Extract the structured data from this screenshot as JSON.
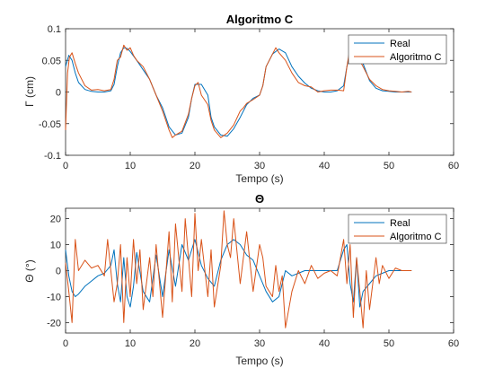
{
  "colors": {
    "real": "#0072BD",
    "algo": "#D95319",
    "axis": "#262626"
  },
  "chart_data": [
    {
      "type": "line",
      "title": "Algoritmo C",
      "xlabel": "Tempo (s)",
      "ylabel": "Γ (cm)",
      "xlim": [
        0,
        60
      ],
      "ylim": [
        -0.1,
        0.1
      ],
      "xticks": [
        0,
        10,
        20,
        30,
        40,
        50,
        60
      ],
      "yticks": [
        -0.1,
        -0.05,
        0,
        0.05,
        0.1
      ],
      "xtick_labels": [
        "0",
        "10",
        "20",
        "30",
        "40",
        "50",
        "60"
      ],
      "ytick_labels": [
        "-0.1",
        "-0.05",
        "0",
        "0.05",
        "0.1"
      ],
      "legend": [
        "Real",
        "Algoritmo C"
      ],
      "legend_position": "top-right",
      "series": [
        {
          "name": "Real",
          "x": [
            0,
            0.5,
            1,
            1.5,
            2,
            3,
            4,
            5,
            6,
            7,
            7.5,
            8,
            8.5,
            9,
            9.5,
            10,
            11,
            12,
            13,
            14,
            15,
            16,
            17,
            18,
            19,
            19.5,
            20,
            21,
            22,
            22.5,
            23,
            24,
            25,
            26,
            27,
            28,
            29,
            30,
            30.5,
            31,
            32,
            33,
            34,
            35,
            36,
            37,
            38,
            39,
            40,
            41,
            42,
            43,
            43.5,
            44,
            45,
            46,
            47,
            48,
            49,
            50,
            51,
            52,
            53,
            53.5
          ],
          "y": [
            0.04,
            0.058,
            0.05,
            0.03,
            0.015,
            0.004,
            0.001,
            0,
            0,
            0.002,
            0.012,
            0.04,
            0.062,
            0.07,
            0.069,
            0.064,
            0.05,
            0.035,
            0.02,
            -0.005,
            -0.025,
            -0.055,
            -0.068,
            -0.065,
            -0.04,
            -0.01,
            0.012,
            0.012,
            -0.005,
            -0.04,
            -0.055,
            -0.068,
            -0.07,
            -0.058,
            -0.04,
            -0.02,
            -0.01,
            -0.005,
            0.01,
            0.04,
            0.06,
            0.068,
            0.062,
            0.04,
            0.025,
            0.014,
            0.006,
            0.002,
            0,
            0,
            0.002,
            0.01,
            0.04,
            0.06,
            0.064,
            0.045,
            0.018,
            0.006,
            0.002,
            0.001,
            0,
            0,
            0,
            0
          ]
        },
        {
          "name": "Algoritmo C",
          "x": [
            0,
            0.3,
            0.6,
            1,
            1.5,
            2,
            3,
            4,
            5,
            6,
            7,
            7.5,
            8,
            8.5,
            9,
            9.5,
            10,
            10.5,
            11,
            12,
            13,
            14,
            15,
            15.5,
            16,
            16.5,
            17,
            18,
            19,
            19.5,
            20,
            20.5,
            21,
            22,
            22.5,
            23,
            24,
            25,
            26,
            27,
            27.5,
            28,
            29,
            30,
            30.5,
            31,
            32,
            32.5,
            33,
            34,
            35,
            36,
            37,
            38,
            39,
            40,
            41,
            42,
            43,
            43.5,
            44,
            45,
            46,
            47,
            48,
            49,
            50,
            51,
            52,
            53,
            53.5
          ],
          "y": [
            -0.06,
            0.03,
            0.055,
            0.062,
            0.045,
            0.03,
            0.01,
            0.003,
            0.004,
            0.002,
            0.004,
            0.02,
            0.05,
            0.055,
            0.074,
            0.066,
            0.07,
            0.058,
            0.05,
            0.04,
            0.02,
            -0.005,
            -0.03,
            -0.045,
            -0.06,
            -0.072,
            -0.068,
            -0.062,
            -0.035,
            -0.01,
            0.01,
            0.015,
            -0.005,
            -0.02,
            -0.045,
            -0.06,
            -0.072,
            -0.065,
            -0.052,
            -0.03,
            -0.025,
            -0.018,
            -0.012,
            -0.005,
            0.01,
            0.04,
            0.06,
            0.07,
            0.062,
            0.05,
            0.03,
            0.015,
            0.01,
            0.008,
            0,
            0.002,
            0.003,
            0.003,
            0.002,
            0.04,
            0.07,
            0.06,
            0.04,
            0.02,
            0.01,
            0.004,
            0.002,
            0.001,
            0,
            0.001,
            0
          ]
        }
      ]
    },
    {
      "type": "line",
      "title": "Θ",
      "xlabel": "Tempo (s)",
      "ylabel": "Θ (°)",
      "xlim": [
        0,
        60
      ],
      "ylim": [
        -24,
        24
      ],
      "xticks": [
        0,
        10,
        20,
        30,
        40,
        50,
        60
      ],
      "yticks": [
        -20,
        -10,
        0,
        10,
        20
      ],
      "xtick_labels": [
        "0",
        "10",
        "20",
        "30",
        "40",
        "50",
        "60"
      ],
      "ytick_labels": [
        "-20",
        "-10",
        "0",
        "10",
        "20"
      ],
      "legend": [
        "Real",
        "Algoritmo C"
      ],
      "legend_position": "top-right",
      "series": [
        {
          "name": "Real",
          "x": [
            0,
            0.5,
            1,
            1.5,
            2,
            3,
            4,
            5,
            6,
            7,
            7.5,
            8,
            8.5,
            9,
            9.5,
            10,
            10.5,
            11,
            12,
            13,
            14,
            15,
            16,
            17,
            18,
            19,
            20,
            21,
            22,
            23,
            24,
            25,
            26,
            27,
            28,
            29,
            30,
            31,
            32,
            33,
            34,
            35,
            36,
            37,
            38,
            39,
            40,
            41,
            42,
            43,
            43.5,
            44,
            44.5,
            45,
            45.5,
            46,
            47,
            48,
            49,
            50,
            51,
            52,
            53,
            53.5
          ],
          "y": [
            8,
            -2,
            -8,
            -10,
            -9,
            -6,
            -4,
            -2,
            -1,
            2,
            8,
            -5,
            -12,
            5,
            -10,
            -14,
            -6,
            7,
            -8,
            -12,
            6,
            -10,
            8,
            -6,
            10,
            4,
            12,
            2,
            -3,
            -6,
            4,
            10,
            12,
            10,
            6,
            4,
            -2,
            -8,
            -12,
            -10,
            0,
            -2,
            -1,
            0,
            0,
            0,
            0,
            0,
            0,
            8,
            10,
            -5,
            -12,
            5,
            -14,
            -8,
            -5,
            -2,
            -1,
            0,
            0,
            0,
            0,
            0
          ]
        },
        {
          "name": "Algoritmo C",
          "x": [
            0,
            0.5,
            1,
            1.5,
            2,
            3,
            4,
            5,
            6,
            6.5,
            7,
            7.5,
            8,
            8.5,
            9,
            9.5,
            10,
            10.5,
            11,
            11.5,
            12,
            13,
            13.5,
            14,
            15,
            16,
            16.5,
            17,
            18,
            18.5,
            19,
            19.5,
            20,
            20.5,
            21,
            22,
            22.5,
            23,
            24,
            24.5,
            25,
            25.5,
            26,
            27,
            28,
            29,
            30,
            30.5,
            31,
            32,
            32.5,
            33,
            33.5,
            34,
            35,
            36,
            37,
            38,
            39,
            40,
            41,
            42,
            43,
            43.5,
            44,
            44.5,
            45,
            45.5,
            46,
            46.5,
            47,
            48,
            48.5,
            49,
            50,
            51,
            52,
            53,
            53.5
          ],
          "y": [
            3,
            -8,
            -20,
            12,
            0,
            4,
            1,
            2,
            -2,
            12,
            0,
            -12,
            -5,
            10,
            -20,
            5,
            -10,
            12,
            -5,
            8,
            -15,
            5,
            -10,
            10,
            -18,
            15,
            -12,
            18,
            -8,
            20,
            5,
            -10,
            22,
            0,
            12,
            -10,
            8,
            -14,
            2,
            23,
            10,
            5,
            20,
            -5,
            15,
            -8,
            10,
            5,
            -6,
            -10,
            2,
            -8,
            -2,
            -22,
            -8,
            0,
            -5,
            2,
            -3,
            -1,
            0,
            -2,
            12,
            -5,
            10,
            -18,
            5,
            -8,
            -22,
            0,
            -15,
            5,
            -5,
            2,
            -3,
            1,
            0,
            0,
            0
          ]
        }
      ]
    }
  ]
}
